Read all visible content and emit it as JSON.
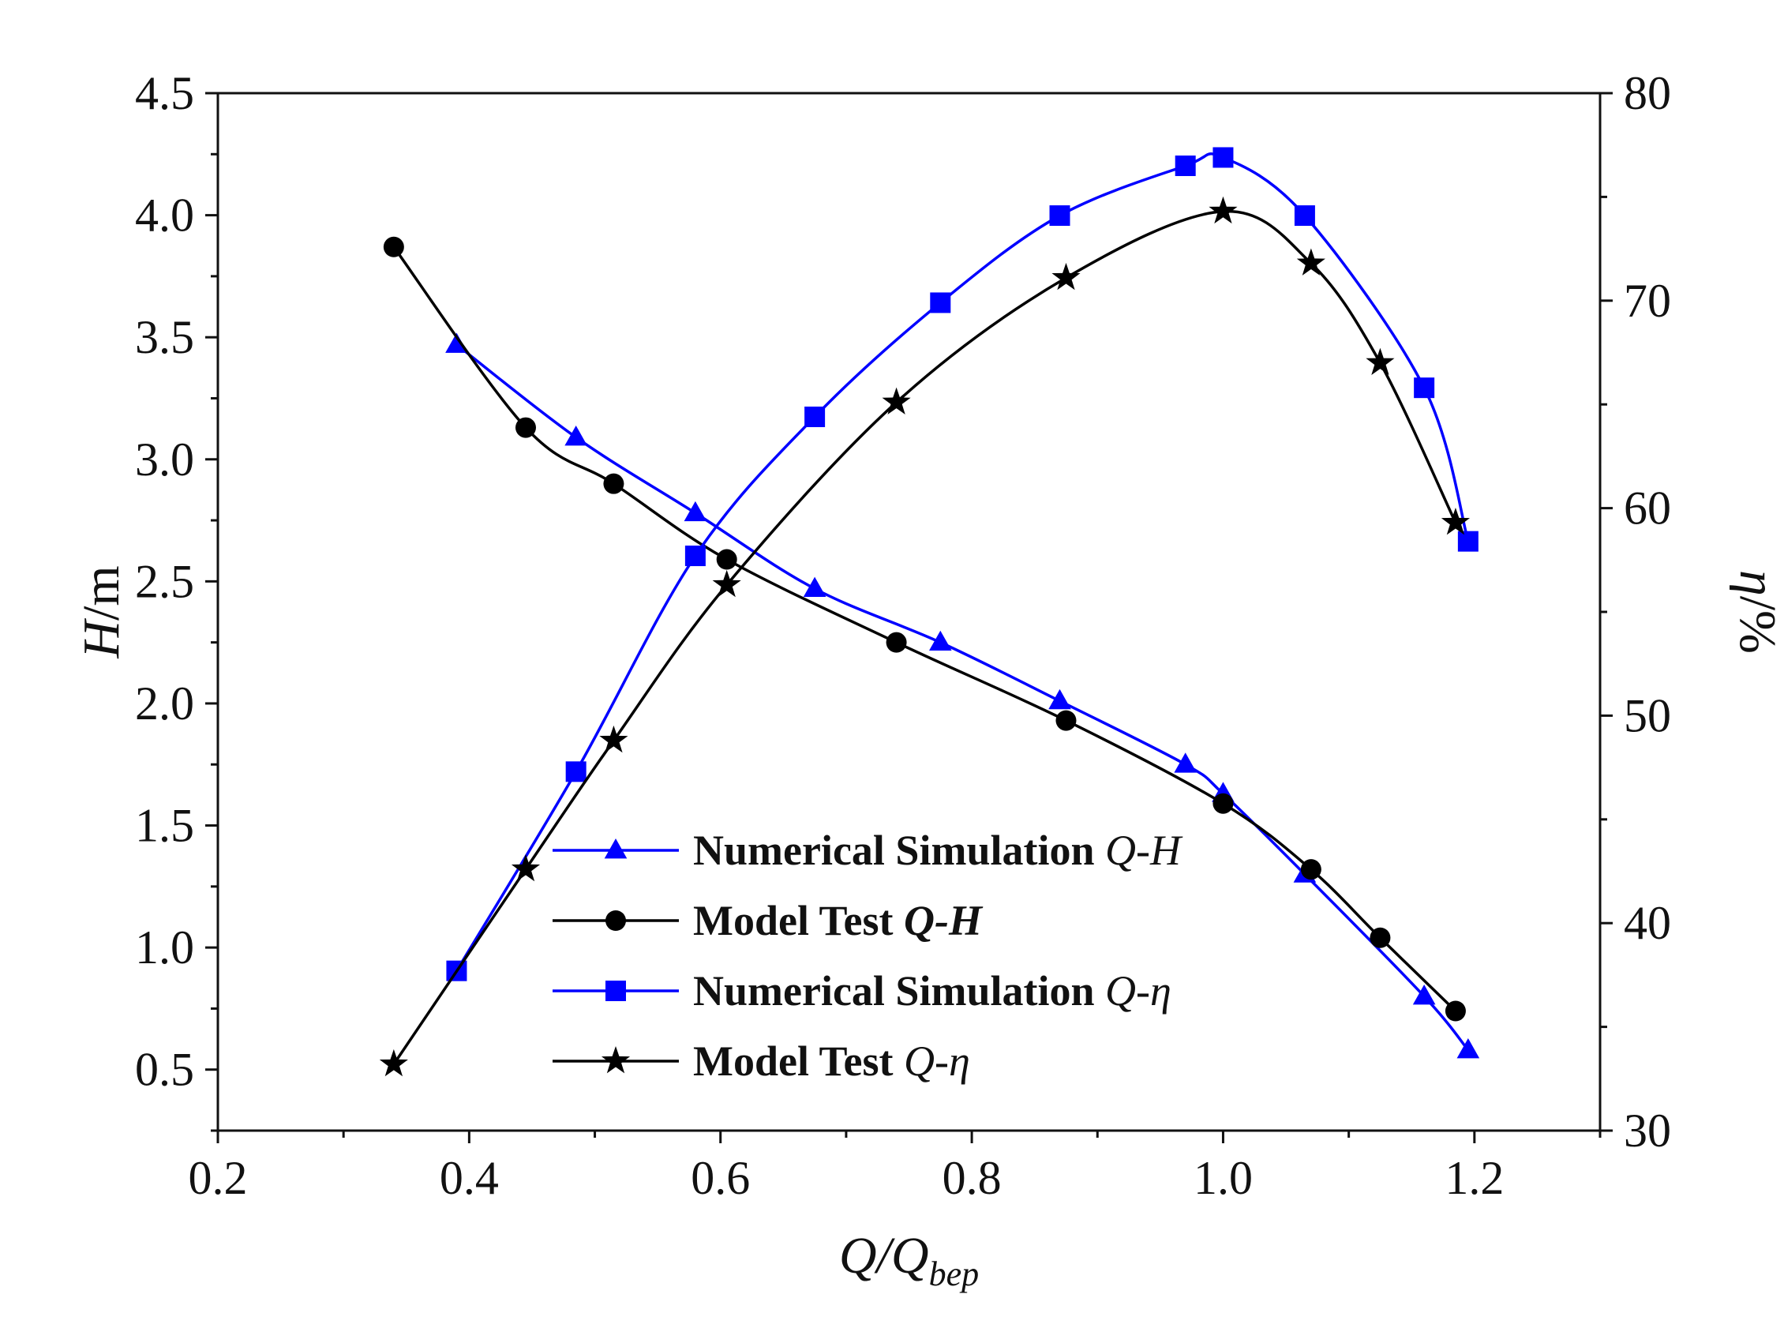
{
  "chart_data": {
    "type": "line",
    "title": "",
    "xlabel": {
      "main": "Q/Q",
      "sub": "bep"
    },
    "ylabel_left": {
      "ital": "H",
      "rest": "/m"
    },
    "ylabel_right": {
      "ital": "η",
      "rest": "/%"
    },
    "xlim": [
      0.2,
      1.3
    ],
    "ylim_left": [
      0.25,
      4.5
    ],
    "ylim_right": [
      30,
      80
    ],
    "x_ticks": [
      "0.2",
      "0.4",
      "0.6",
      "0.8",
      "1.0",
      "1.2"
    ],
    "y_left_ticks": [
      "0.5",
      "1.0",
      "1.5",
      "2.0",
      "2.5",
      "3.0",
      "3.5",
      "4.0",
      "4.5"
    ],
    "y_right_ticks": [
      "30",
      "40",
      "50",
      "60",
      "70",
      "80"
    ],
    "legend_position": "bottom-center",
    "series": [
      {
        "name": "Numerical Simulation Q-H",
        "legend_bold": "Numerical Simulation ",
        "legend_ital": "Q-H",
        "axis": "left",
        "color": "#0000ff",
        "marker": "triangle",
        "x": [
          0.39,
          0.485,
          0.58,
          0.675,
          0.775,
          0.87,
          0.97,
          1.0,
          1.065,
          1.16,
          1.195
        ],
        "y": [
          3.47,
          3.09,
          2.78,
          2.47,
          2.25,
          2.01,
          1.75,
          1.63,
          1.3,
          0.8,
          0.58
        ]
      },
      {
        "name": "Model Test Q-H",
        "legend_bold": "Model Test  ",
        "legend_ital": "Q-H",
        "axis": "left",
        "color": "#000000",
        "marker": "circle",
        "x": [
          0.34,
          0.445,
          0.515,
          0.605,
          0.74,
          0.875,
          1.0,
          1.07,
          1.125,
          1.185
        ],
        "y": [
          3.87,
          3.13,
          2.9,
          2.59,
          2.25,
          1.93,
          1.59,
          1.32,
          1.04,
          0.74
        ]
      },
      {
        "name": "Numerical Simulation Q-η",
        "legend_bold": "Numerical Simulation ",
        "legend_ital": "Q-η",
        "axis": "right",
        "color": "#0000ff",
        "marker": "square",
        "x": [
          0.39,
          0.485,
          0.58,
          0.675,
          0.775,
          0.87,
          0.97,
          1.0,
          1.065,
          1.16,
          1.195
        ],
        "y": [
          37.7,
          47.3,
          57.7,
          64.4,
          69.9,
          74.1,
          76.5,
          76.9,
          74.1,
          65.8,
          58.4
        ]
      },
      {
        "name": "Model Test Q-η",
        "legend_bold": "Model Test ",
        "legend_ital": "Q-η",
        "axis": "right",
        "color": "#000000",
        "marker": "star",
        "x": [
          0.34,
          0.445,
          0.515,
          0.605,
          0.74,
          0.875,
          1.0,
          1.07,
          1.125,
          1.185
        ],
        "y": [
          33.2,
          42.6,
          48.8,
          56.3,
          65.1,
          71.1,
          74.3,
          71.8,
          67.0,
          59.3
        ]
      }
    ]
  }
}
